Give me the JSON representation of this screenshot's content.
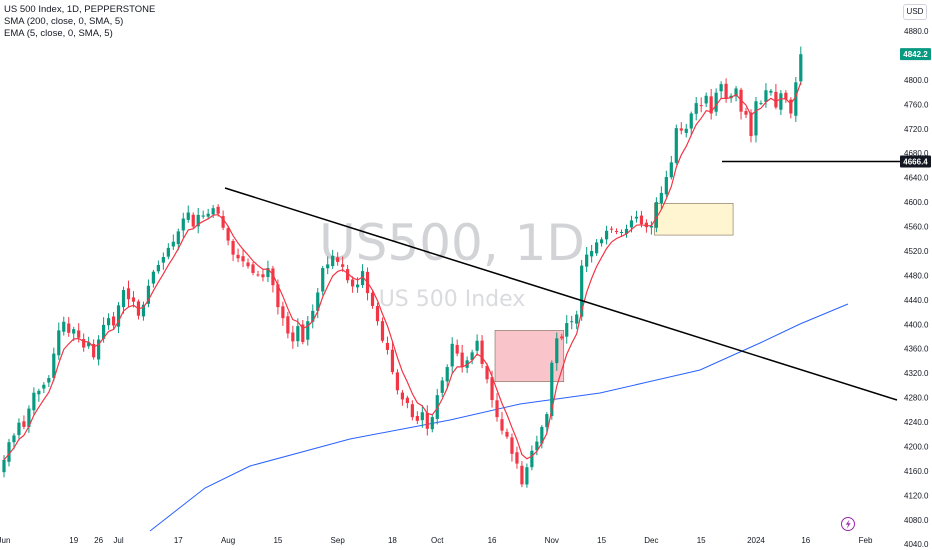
{
  "legend": {
    "symbol": "US 500 Index, 1D, PEPPERSTONE",
    "sma": "SMA (200, close, 0, SMA, 5)",
    "ema": "EMA (5, close, 0, SMA, 5)"
  },
  "currency": "USD",
  "watermark": {
    "main": "US500, 1D",
    "sub": "US 500 Index"
  },
  "chart_data": {
    "type": "candlestick",
    "y_ticks": [
      4040,
      4080,
      4120,
      4160,
      4200,
      4240,
      4280,
      4320,
      4360,
      4400,
      4440,
      4480,
      4520,
      4560,
      4600,
      4640,
      4680,
      4720,
      4760,
      4800,
      4840,
      4880
    ],
    "y_tick_labels": [
      "4040.0",
      "4080.0",
      "4120.0",
      "4160.0",
      "4200.0",
      "4240.0",
      "4280.0",
      "4320.0",
      "4360.0",
      "4400.0",
      "4440.0",
      "4480.0",
      "4520.0",
      "4560.0",
      "4600.0",
      "4640.0",
      "4680.0",
      "4720.0",
      "4760.0",
      "4800.0",
      "4840.0",
      "4880.0"
    ],
    "x_ticks": [
      {
        "label": "Jun",
        "bar": 0
      },
      {
        "label": "19",
        "bar": 14
      },
      {
        "label": "26",
        "bar": 19
      },
      {
        "label": "Jul",
        "bar": 23
      },
      {
        "label": "17",
        "bar": 35
      },
      {
        "label": "Aug",
        "bar": 45
      },
      {
        "label": "15",
        "bar": 55
      },
      {
        "label": "Sep",
        "bar": 67
      },
      {
        "label": "18",
        "bar": 78
      },
      {
        "label": "Oct",
        "bar": 87
      },
      {
        "label": "16",
        "bar": 98
      },
      {
        "label": "Nov",
        "bar": 110
      },
      {
        "label": "15",
        "bar": 120
      },
      {
        "label": "Dec",
        "bar": 130
      },
      {
        "label": "15",
        "bar": 140
      },
      {
        "label": "2024",
        "bar": 151
      },
      {
        "label": "16",
        "bar": 161
      },
      {
        "label": "Feb",
        "bar": 173
      }
    ],
    "ylim": [
      4030,
      4895
    ],
    "last_price": {
      "label": "4842.2",
      "value": 4842.2
    },
    "level_marker": {
      "label": "4666.4",
      "value": 4666.4
    },
    "closes": [
      4178,
      4207,
      4218,
      4239,
      4232,
      4262,
      4288,
      4291,
      4301,
      4312,
      4352,
      4390,
      4404,
      4386,
      4392,
      4378,
      4362,
      4370,
      4346,
      4375,
      4399,
      4410,
      4398,
      4431,
      4456,
      4441,
      4437,
      4414,
      4432,
      4463,
      4486,
      4497,
      4510,
      4525,
      4535,
      4552,
      4573,
      4583,
      4560,
      4579,
      4578,
      4581,
      4590,
      4581,
      4558,
      4537,
      4514,
      4508,
      4503,
      4495,
      4484,
      4481,
      4477,
      4492,
      4464,
      4428,
      4410,
      4385,
      4372,
      4397,
      4371,
      4405,
      4422,
      4452,
      4492,
      4498,
      4512,
      4502,
      4494,
      4472,
      4462,
      4465,
      4487,
      4451,
      4430,
      4405,
      4373,
      4358,
      4322,
      4292,
      4277,
      4271,
      4248,
      4242,
      4256,
      4229,
      4248,
      4284,
      4308,
      4330,
      4368,
      4352,
      4330,
      4341,
      4354,
      4373,
      4335,
      4310,
      4276,
      4248,
      4226,
      4216,
      4188,
      4172,
      4138,
      4166,
      4193,
      4208,
      4232,
      4253,
      4337,
      4377,
      4377,
      4402,
      4405,
      4416,
      4496,
      4514,
      4520,
      4534,
      4539,
      4553,
      4556,
      4552,
      4551,
      4556,
      4570,
      4576,
      4564,
      4559,
      4561,
      4600,
      4615,
      4641,
      4665,
      4721,
      4717,
      4720,
      4745,
      4762,
      4758,
      4774,
      4745,
      4779,
      4793,
      4769,
      4774,
      4786,
      4748,
      4743,
      4708,
      4765,
      4762,
      4783,
      4782,
      4755,
      4778,
      4768,
      4745,
      4796,
      4842
    ],
    "sma_200": [
      4069,
      4140,
      4167,
      4216,
      4251,
      4271,
      4296,
      4323,
      4353,
      4380,
      4403
    ],
    "sma_200_x": [
      [
        150,
        531
      ],
      [
        205,
        488
      ],
      [
        250,
        466
      ],
      [
        350,
        439
      ],
      [
        450,
        420
      ],
      [
        520,
        404
      ],
      [
        600,
        393
      ],
      [
        700,
        370
      ],
      [
        760,
        343
      ],
      [
        800,
        324
      ],
      [
        848,
        304
      ]
    ],
    "trend_line": {
      "from": {
        "bar": 37,
        "value": 4613
      },
      "to": {
        "bar": 192,
        "value": 4252
      }
    },
    "support_line_value": 4666.4,
    "zones": [
      {
        "bar_from": 99,
        "bar_to": 112,
        "top": 4390,
        "bottom": 4306,
        "color": "#f8b7bd"
      },
      {
        "bar_from": 131,
        "bar_to": 146,
        "top": 4598,
        "bottom": 4546,
        "color": "#fff5c9"
      }
    ]
  },
  "colors": {
    "up": "#089981",
    "down": "#f23645",
    "ema": "#f23645",
    "sma": "#2962ff",
    "last_price_bg": "#089981",
    "level_bg": "#131722",
    "trend": "#000000"
  },
  "icons": {
    "bottom_badge": "lightning-icon"
  }
}
